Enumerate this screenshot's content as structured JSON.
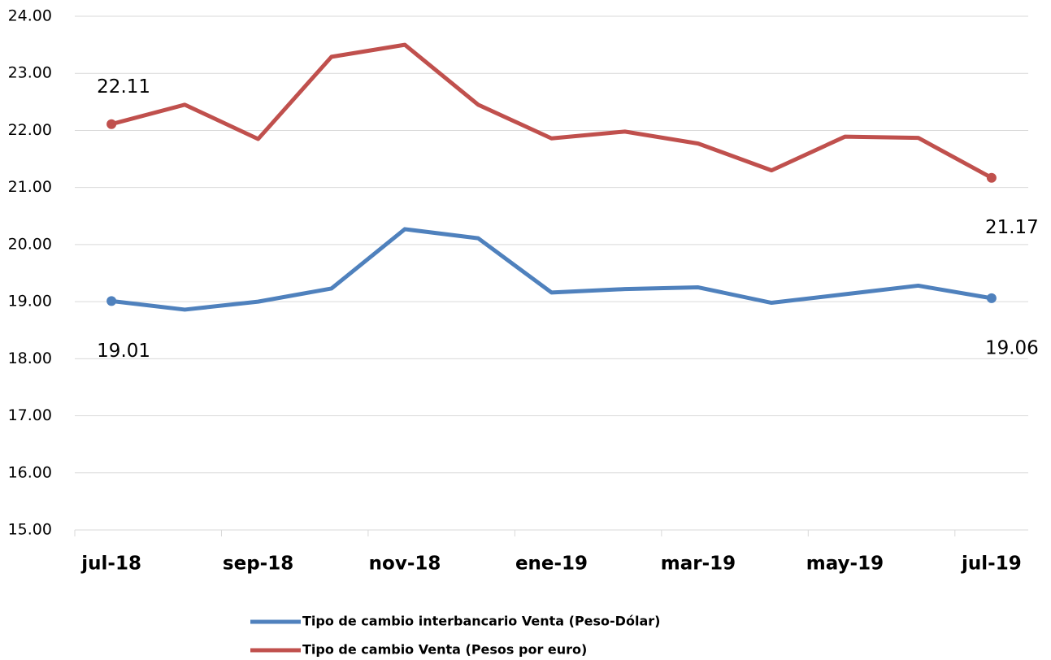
{
  "chart_data": {
    "type": "line",
    "categories": [
      "jul-18",
      null,
      "sep-18",
      null,
      "nov-18",
      null,
      "ene-19",
      null,
      "mar-19",
      null,
      "may-19",
      null,
      "jul-19"
    ],
    "series": [
      {
        "name": "Tipo de cambio interbancario Venta (Peso-Dólar)",
        "color": "#4f81bd",
        "values": [
          19.01,
          18.86,
          19.0,
          19.23,
          20.27,
          20.11,
          19.16,
          19.22,
          19.25,
          18.98,
          19.13,
          19.28,
          19.06
        ]
      },
      {
        "name": "Tipo de cambio Venta (Pesos por euro)",
        "color": "#c0504d",
        "values": [
          22.11,
          22.45,
          21.85,
          23.29,
          23.5,
          22.45,
          21.86,
          21.98,
          21.77,
          21.3,
          21.89,
          21.87,
          21.17
        ]
      }
    ],
    "ylim": [
      15,
      24
    ],
    "yticks": [
      {
        "value": 15,
        "label": "15.00"
      },
      {
        "value": 16,
        "label": "16.00"
      },
      {
        "value": 17,
        "label": "17.00"
      },
      {
        "value": 18,
        "label": "18.00"
      },
      {
        "value": 19,
        "label": "19.00"
      },
      {
        "value": 20,
        "label": "20.00"
      },
      {
        "value": 21,
        "label": "21.00"
      },
      {
        "value": 22,
        "label": "22.00"
      },
      {
        "value": 23,
        "label": "23.00"
      },
      {
        "value": 24,
        "label": "24.00"
      }
    ],
    "grid": true,
    "legend": "bottom"
  }
}
